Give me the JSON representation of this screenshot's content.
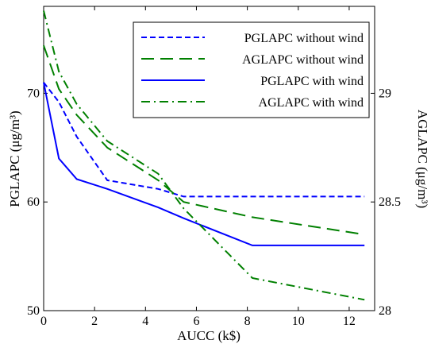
{
  "chart_data": {
    "type": "line",
    "xlabel": "AUCC (k$)",
    "ylabel_left": "PGLAPC (μg/m³)",
    "ylabel_right": "AGLAPC (μg/m³)",
    "xlim": [
      0,
      13
    ],
    "ylim_left": [
      50,
      78
    ],
    "ylim_right": [
      28,
      29.4
    ],
    "xticks": [
      0,
      2,
      4,
      6,
      8,
      10,
      12
    ],
    "yticks_left": [
      50,
      60,
      70
    ],
    "yticks_right": [
      28,
      28.5,
      29
    ],
    "grid": false,
    "legend_position": "top-right",
    "series": [
      {
        "name": "PGLAPC without wind",
        "axis": "left",
        "color": "#0000ff",
        "style": "dashed",
        "x": [
          0,
          0.6,
          1.3,
          2.5,
          4.5,
          5.5,
          8.2,
          12.6
        ],
        "y": [
          71,
          69.2,
          66,
          62,
          61.2,
          60.5,
          60.5,
          60.5
        ]
      },
      {
        "name": "AGLAPC without wind",
        "axis": "right",
        "color": "#008000",
        "style": "longdash",
        "x": [
          0,
          0.6,
          1.3,
          2.5,
          4.5,
          5.5,
          8.2,
          12.6
        ],
        "y": [
          29.22,
          29.02,
          28.9,
          28.75,
          28.6,
          28.5,
          28.43,
          28.35
        ]
      },
      {
        "name": "PGLAPC with wind",
        "axis": "left",
        "color": "#0000ff",
        "style": "solid",
        "x": [
          0,
          0.6,
          1.3,
          2.5,
          4.5,
          5.5,
          8.2,
          12.6
        ],
        "y": [
          71,
          64,
          62.1,
          61.2,
          59.5,
          58.5,
          56,
          56
        ]
      },
      {
        "name": "AGLAPC with wind",
        "axis": "right",
        "color": "#008000",
        "style": "dashdot",
        "x": [
          0,
          0.6,
          1.3,
          2.5,
          4.5,
          5.5,
          8.2,
          12.6
        ],
        "y": [
          29.38,
          29.1,
          28.95,
          28.78,
          28.63,
          28.47,
          28.15,
          28.05
        ]
      }
    ]
  }
}
